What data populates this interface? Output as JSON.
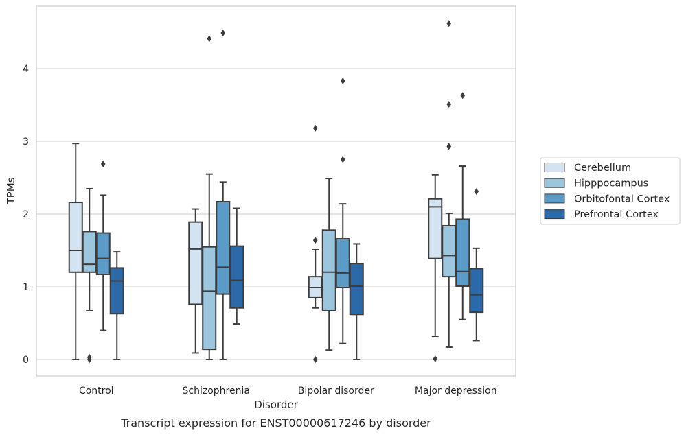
{
  "caption": "Transcript expression for ENST00000617246 by disorder",
  "chart_data": {
    "type": "box",
    "xlabel": "Disorder",
    "ylabel": "TPMs",
    "ylim": [
      -0.22,
      4.88
    ],
    "yticks": [
      0,
      1,
      2,
      3,
      4
    ],
    "grid": "horizontal",
    "legend_position": "right",
    "categories": [
      "Control",
      "Schizophrenia",
      "Bipolar disorder",
      "Major depression"
    ],
    "series": [
      {
        "name": "Cerebellum",
        "color": "#d4e3f2",
        "boxes": [
          {
            "whislo": 0.0,
            "q1": 1.2,
            "med": 1.5,
            "q3": 2.16,
            "whishi": 2.97,
            "fliers": []
          },
          {
            "whislo": 0.09,
            "q1": 0.76,
            "med": 1.52,
            "q3": 1.89,
            "whishi": 2.07,
            "fliers": []
          },
          {
            "whislo": 0.71,
            "q1": 0.85,
            "med": 0.99,
            "q3": 1.14,
            "whishi": 1.51,
            "fliers": [
              1.64,
              3.18,
              0.0
            ]
          },
          {
            "whislo": 0.32,
            "q1": 1.39,
            "med": 2.1,
            "q3": 2.21,
            "whishi": 2.54,
            "fliers": [
              0.01
            ]
          }
        ]
      },
      {
        "name": "Hipppocampus",
        "color": "#9cc5de",
        "boxes": [
          {
            "whislo": 0.67,
            "q1": 1.2,
            "med": 1.31,
            "q3": 1.76,
            "whishi": 2.35,
            "fliers": [
              0.03,
              0.0
            ]
          },
          {
            "whislo": 0.0,
            "q1": 0.14,
            "med": 0.94,
            "q3": 1.55,
            "whishi": 2.55,
            "fliers": [
              4.41
            ]
          },
          {
            "whislo": 0.13,
            "q1": 0.67,
            "med": 1.2,
            "q3": 1.78,
            "whishi": 2.49,
            "fliers": []
          },
          {
            "whislo": 0.17,
            "q1": 1.14,
            "med": 1.43,
            "q3": 1.84,
            "whishi": 2.01,
            "fliers": [
              2.93,
              3.51,
              4.62
            ]
          }
        ]
      },
      {
        "name": "Orbitofontal Cortex",
        "color": "#5a9bc8",
        "boxes": [
          {
            "whislo": 0.4,
            "q1": 1.17,
            "med": 1.39,
            "q3": 1.74,
            "whishi": 2.26,
            "fliers": [
              2.69
            ]
          },
          {
            "whislo": 0.0,
            "q1": 0.9,
            "med": 1.27,
            "q3": 2.17,
            "whishi": 2.44,
            "fliers": [
              4.49
            ]
          },
          {
            "whislo": 0.22,
            "q1": 0.99,
            "med": 1.19,
            "q3": 1.66,
            "whishi": 2.14,
            "fliers": [
              2.75,
              3.83
            ]
          },
          {
            "whislo": 0.55,
            "q1": 1.01,
            "med": 1.21,
            "q3": 1.93,
            "whishi": 2.66,
            "fliers": [
              3.63
            ]
          }
        ]
      },
      {
        "name": "Prefrontal Cortex",
        "color": "#2b69a8",
        "boxes": [
          {
            "whislo": 0.0,
            "q1": 0.63,
            "med": 1.08,
            "q3": 1.26,
            "whishi": 1.48,
            "fliers": []
          },
          {
            "whislo": 0.49,
            "q1": 0.71,
            "med": 1.09,
            "q3": 1.56,
            "whishi": 2.08,
            "fliers": []
          },
          {
            "whislo": 0.0,
            "q1": 0.62,
            "med": 1.01,
            "q3": 1.32,
            "whishi": 1.59,
            "fliers": []
          },
          {
            "whislo": 0.26,
            "q1": 0.65,
            "med": 0.89,
            "q3": 1.25,
            "whishi": 1.53,
            "fliers": [
              2.31
            ]
          }
        ]
      }
    ]
  }
}
